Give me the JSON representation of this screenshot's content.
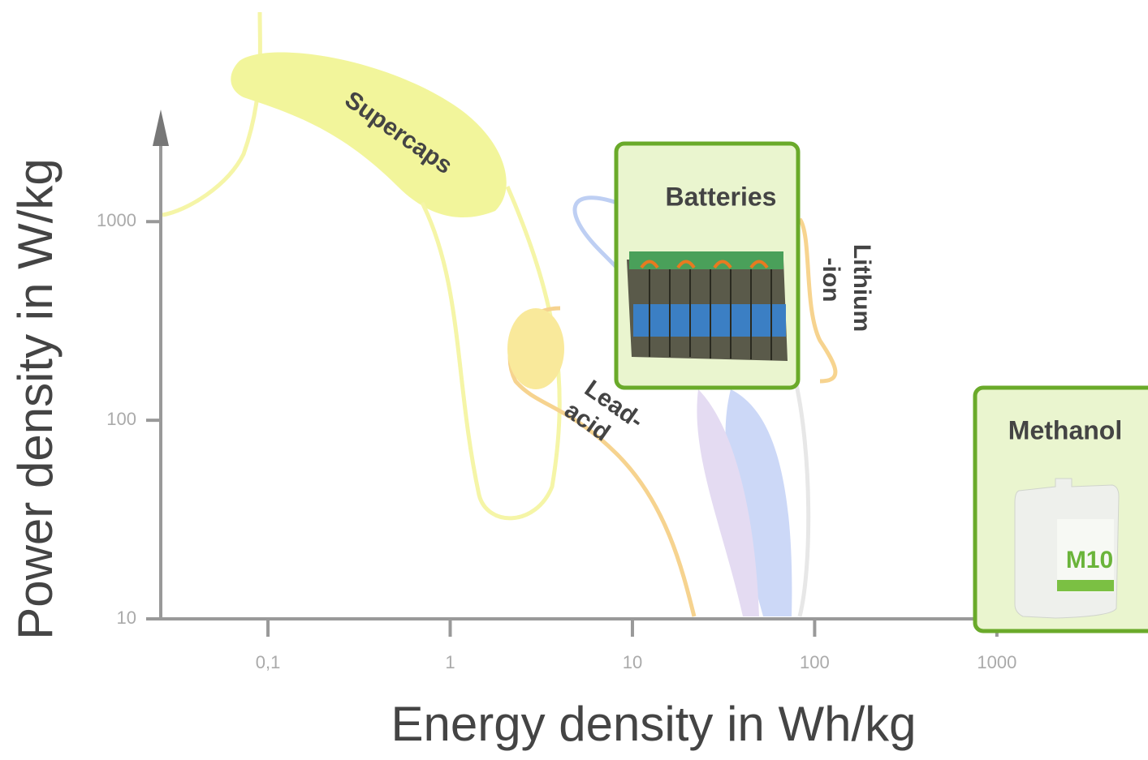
{
  "chart_data": {
    "type": "ragone",
    "x_label": "Energy density in Wh/kg",
    "y_label": "Power density in W/kg",
    "xscale": "log",
    "yscale": "log",
    "xlim": [
      0.0258,
      6750
    ],
    "ylim": [
      10,
      3500
    ],
    "xticks": [
      {
        "value": 0.1,
        "label": "0,1"
      },
      1,
      10,
      100,
      1000
    ],
    "yticks": [
      10,
      100,
      1000
    ],
    "regions": [
      {
        "name": [
          "Supercaps"
        ],
        "color": "#eef27a"
      },
      {
        "name": [
          "Lead-",
          "acid"
        ],
        "color": "#f4c56a"
      },
      {
        "name": [
          "Lithium",
          "-ion"
        ],
        "color": "#f4c56a"
      }
    ],
    "callouts": [
      {
        "title": "Batteries",
        "border": "#6aaa2a",
        "fill": "#eaf5cf"
      },
      {
        "title": "Methanol",
        "border": "#6aaa2a",
        "fill": "#eaf5cf"
      }
    ]
  }
}
